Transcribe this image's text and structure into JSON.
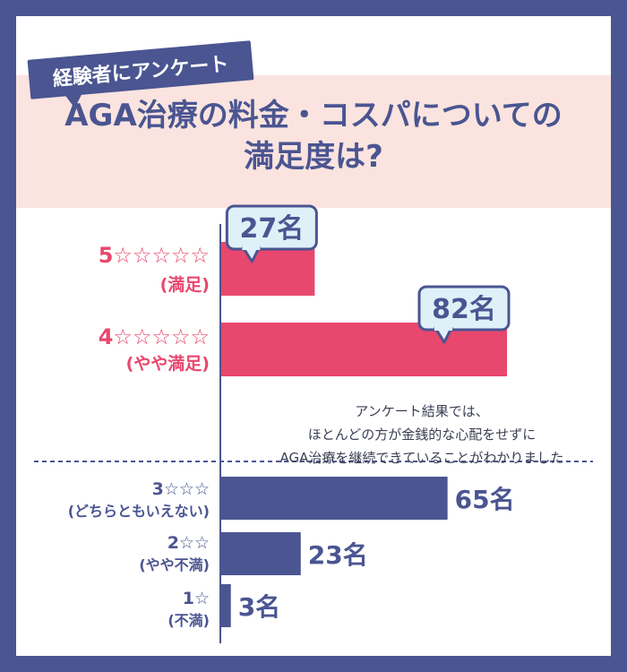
{
  "header": {
    "badge": "経験者にアンケート",
    "title_line1": "AGA治療の料金・コスパについての",
    "title_line2": "満足度は?"
  },
  "colors": {
    "frame": "#4a5591",
    "header_bg": "#fbe4df",
    "pink": "#e8476e",
    "navy": "#4a5591",
    "callout_bg": "#dff0f8"
  },
  "note": {
    "line1": "アンケート結果では、",
    "line2": "ほとんどの方が金銭的な心配をせずに",
    "line3": "AGA治療を継続できていることがわかりました"
  },
  "chart_data": {
    "type": "bar",
    "orientation": "horizontal",
    "unit": "名",
    "categories": [
      {
        "label": "5☆☆☆☆☆",
        "sublabel": "(満足)",
        "value": 27,
        "value_label": "27名",
        "color": "#e8476e",
        "callout": true
      },
      {
        "label": "4☆☆☆☆☆",
        "sublabel": "(やや満足)",
        "value": 82,
        "value_label": "82名",
        "color": "#e8476e",
        "callout": true
      },
      {
        "label": "3☆☆☆",
        "sublabel": "(どちらともいえない)",
        "value": 65,
        "value_label": "65名",
        "color": "#4a5591",
        "callout": false
      },
      {
        "label": "2☆☆",
        "sublabel": "(やや不満)",
        "value": 23,
        "value_label": "23名",
        "color": "#4a5591",
        "callout": false
      },
      {
        "label": "1☆",
        "sublabel": "(不満)",
        "value": 3,
        "value_label": "3名",
        "color": "#4a5591",
        "callout": false
      }
    ],
    "xlim": [
      0,
      82
    ],
    "grid": false,
    "legend": "none"
  }
}
